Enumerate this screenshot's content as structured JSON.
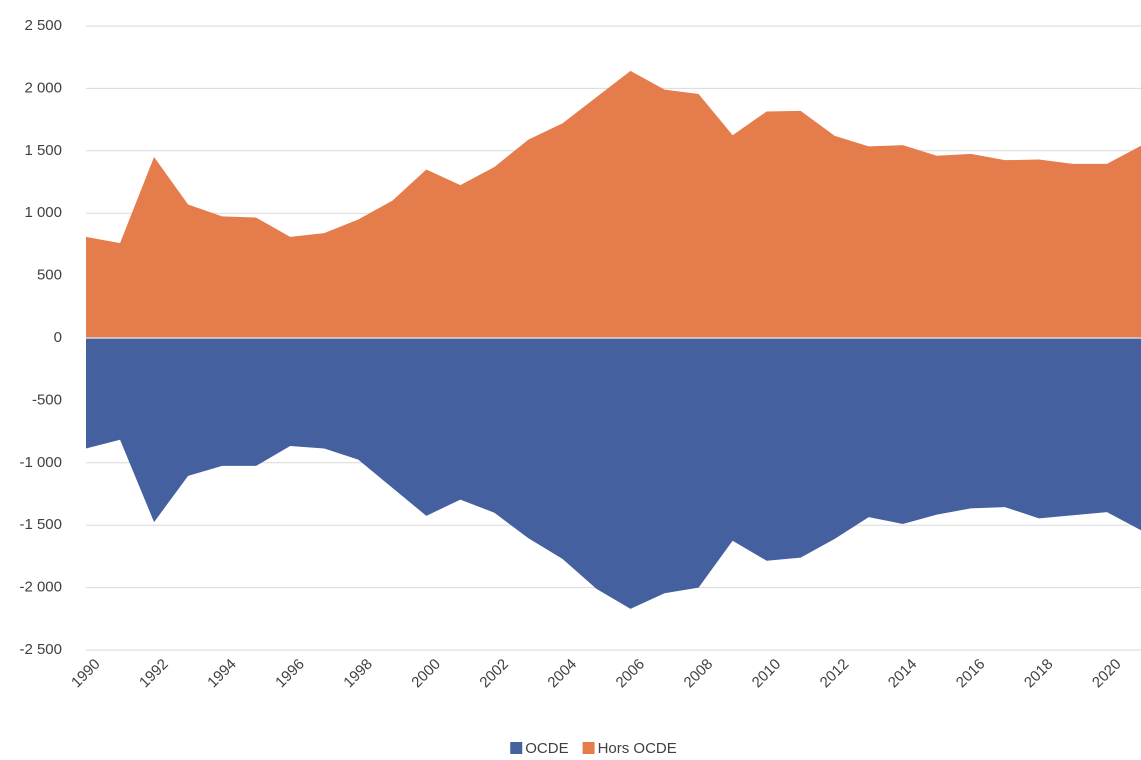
{
  "chart_data": {
    "type": "area",
    "x": [
      1990,
      1991,
      1992,
      1993,
      1994,
      1995,
      1996,
      1997,
      1998,
      1999,
      2000,
      2001,
      2002,
      2003,
      2004,
      2005,
      2006,
      2007,
      2008,
      2009,
      2010,
      2011,
      2012,
      2013,
      2014,
      2015,
      2016,
      2017,
      2018,
      2019,
      2020,
      2021
    ],
    "series": [
      {
        "name": "OCDE",
        "color": "#44609f",
        "values": [
          -885,
          -815,
          -1475,
          -1105,
          -1025,
          -1025,
          -865,
          -885,
          -975,
          -1200,
          -1425,
          -1295,
          -1400,
          -1605,
          -1770,
          -2010,
          -2170,
          -2045,
          -2000,
          -1625,
          -1785,
          -1760,
          -1610,
          -1435,
          -1490,
          -1415,
          -1365,
          -1355,
          -1445,
          -1420,
          -1395,
          -1540
        ]
      },
      {
        "name": "Hors OCDE",
        "color": "#e57c4b",
        "values": [
          810,
          760,
          1450,
          1070,
          975,
          965,
          810,
          840,
          950,
          1100,
          1350,
          1225,
          1370,
          1590,
          1720,
          1930,
          2140,
          1990,
          1955,
          1625,
          1815,
          1820,
          1620,
          1535,
          1545,
          1460,
          1475,
          1425,
          1430,
          1395,
          1395,
          1540
        ]
      }
    ],
    "xlim": [
      1990,
      2021
    ],
    "xticks": [
      1990,
      1992,
      1994,
      1996,
      1998,
      2000,
      2002,
      2004,
      2006,
      2008,
      2010,
      2012,
      2014,
      2016,
      2018,
      2020
    ],
    "ylim": [
      -2500,
      2500
    ],
    "yticks": [
      {
        "value": -2500,
        "label": "-2 500"
      },
      {
        "value": -2000,
        "label": "-2 000"
      },
      {
        "value": -1500,
        "label": "-1 500"
      },
      {
        "value": -1000,
        "label": "-1 000"
      },
      -500,
      0,
      500,
      {
        "value": 1000,
        "label": "1 000"
      },
      {
        "value": 1500,
        "label": "1 500"
      },
      {
        "value": 2000,
        "label": "2 000"
      },
      {
        "value": 2500,
        "label": "2 500"
      }
    ],
    "grid": true,
    "legend": "bottom"
  }
}
